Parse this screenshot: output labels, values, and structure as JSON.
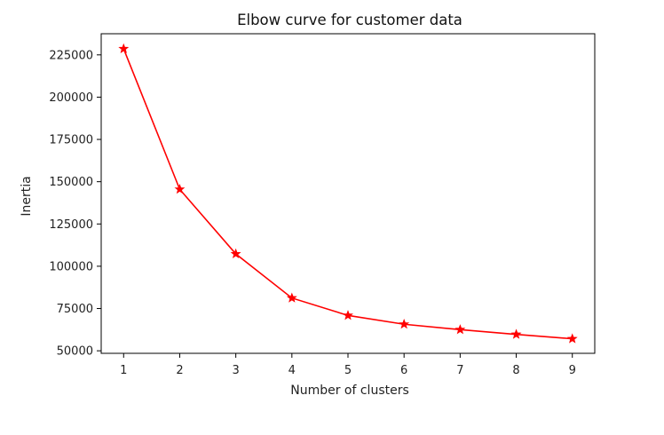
{
  "chart_data": {
    "type": "line",
    "title": "Elbow curve for customer data",
    "xlabel": "Number of clusters",
    "ylabel": "Inertia",
    "x": [
      1,
      2,
      3,
      4,
      5,
      6,
      7,
      8,
      9
    ],
    "series": [
      {
        "values": [
          228600,
          145500,
          107300,
          81200,
          70900,
          65700,
          62500,
          59700,
          57100
        ],
        "color": "#ff0000",
        "marker": "star"
      }
    ],
    "xticks": [
      1,
      2,
      3,
      4,
      5,
      6,
      7,
      8,
      9
    ],
    "yticks": [
      50000,
      75000,
      100000,
      125000,
      150000,
      175000,
      200000,
      225000
    ],
    "xtick_labels": [
      "1",
      "2",
      "3",
      "4",
      "5",
      "6",
      "7",
      "8",
      "9"
    ],
    "ytick_labels": [
      "50000",
      "75000",
      "100000",
      "125000",
      "150000",
      "175000",
      "200000",
      "225000"
    ],
    "xlim": [
      0.6,
      9.4
    ],
    "ylim": [
      48500,
      237500
    ],
    "grid": false,
    "legend": "none"
  }
}
